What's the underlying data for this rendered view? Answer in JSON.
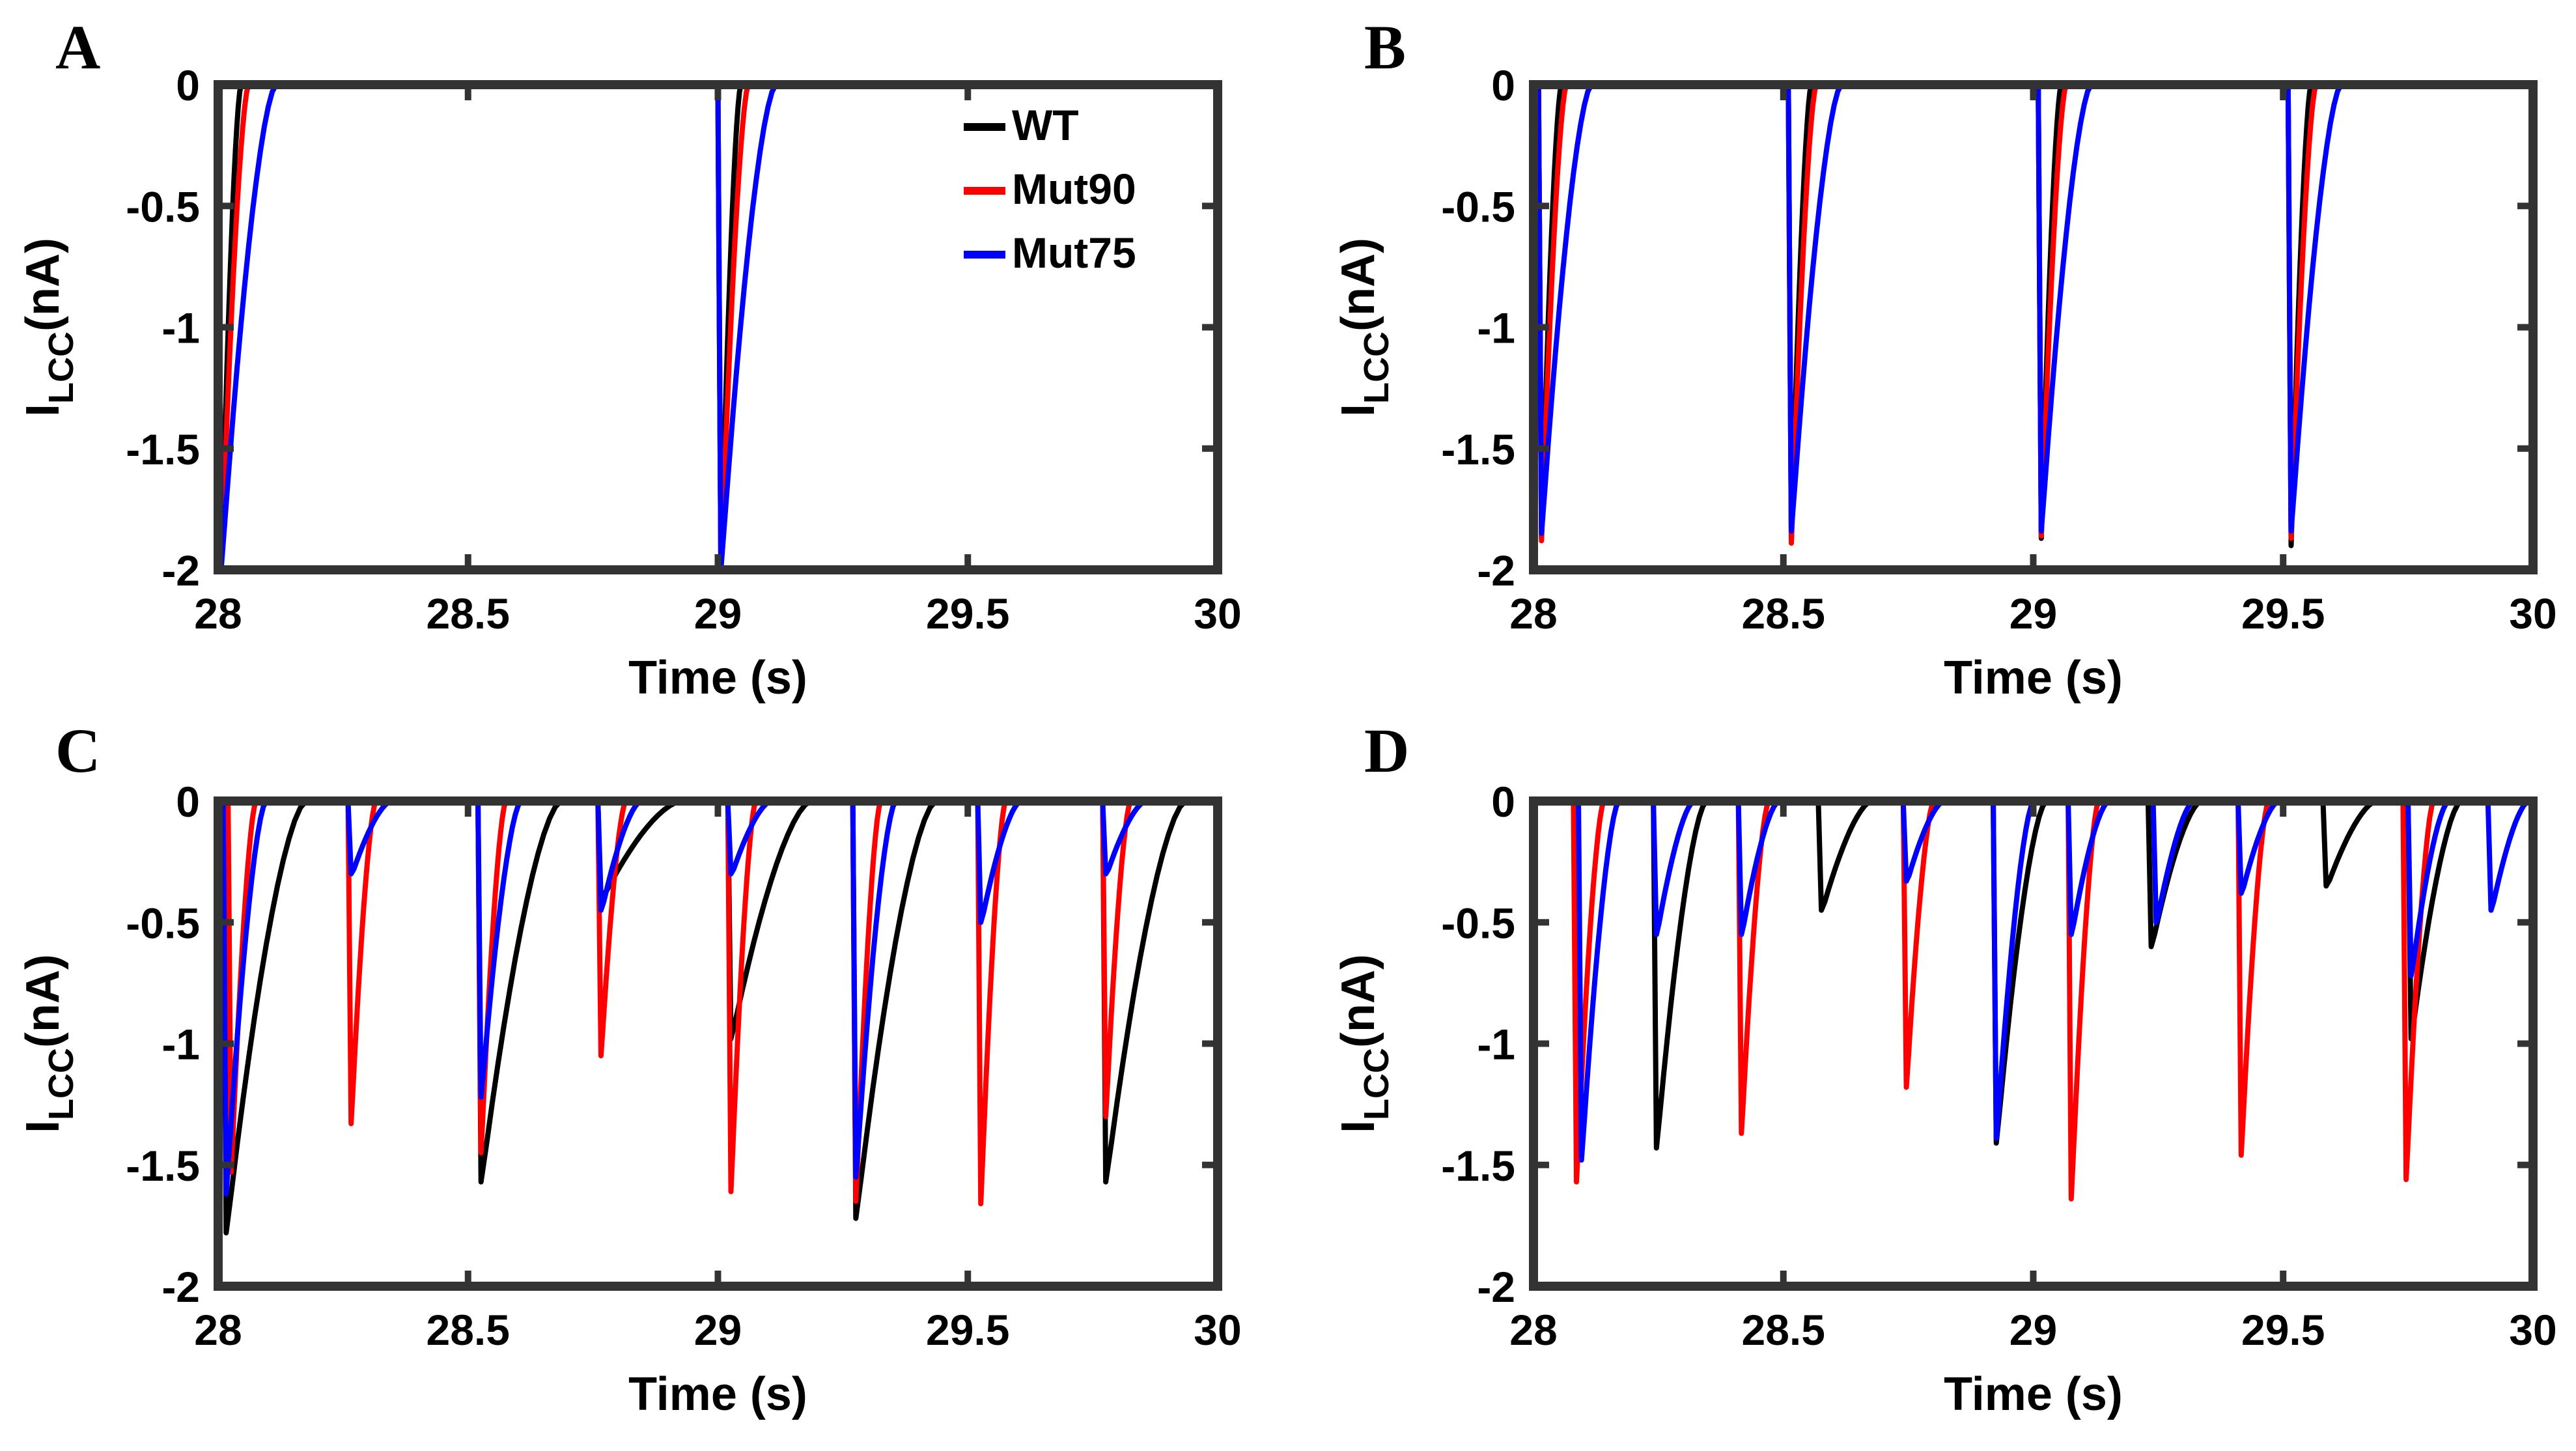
{
  "chart_data": [
    {
      "type": "line",
      "panel": "A",
      "xlabel": "Time (s)",
      "ylabel_main": "I",
      "ylabel_sub": "LCC",
      "ylabel_unit": "(nA)",
      "xlim": [
        28,
        30
      ],
      "ylim": [
        -2,
        0
      ],
      "xticks": [
        28,
        28.5,
        29,
        29.5,
        30
      ],
      "xtick_labels": [
        "28",
        "28.5",
        "29",
        "29.5",
        "30"
      ],
      "yticks": [
        0,
        -0.5,
        -1,
        -1.5,
        -2
      ],
      "ytick_labels": [
        "0",
        "-0.5",
        "-1",
        "-1.5",
        "-2"
      ],
      "legend": {
        "placement": "top-right",
        "entries": [
          "WT",
          "Mut90",
          "Mut75"
        ]
      },
      "series": [
        {
          "name": "WT",
          "color": "#000000",
          "values": [
            [
              28,
              -2.0
            ],
            [
              29,
              -2.0
            ]
          ],
          "width": 0.04
        },
        {
          "name": "Mut90",
          "color": "#ff0000",
          "values": [
            [
              28,
              -2.0
            ],
            [
              29,
              -2.0
            ]
          ],
          "width": 0.055
        },
        {
          "name": "Mut75",
          "color": "#0000ff",
          "values": [
            [
              28,
              -2.0
            ],
            [
              29,
              -2.0
            ]
          ],
          "width": 0.11
        }
      ]
    },
    {
      "type": "line",
      "panel": "B",
      "xlabel": "Time (s)",
      "ylabel_main": "I",
      "ylabel_sub": "LCC",
      "ylabel_unit": "(nA)",
      "xlim": [
        28,
        30
      ],
      "ylim": [
        -2,
        0
      ],
      "xticks": [
        28,
        28.5,
        29,
        29.5,
        30
      ],
      "xtick_labels": [
        "28",
        "28.5",
        "29",
        "29.5",
        "30"
      ],
      "yticks": [
        0,
        -0.5,
        -1,
        -1.5,
        -2
      ],
      "ytick_labels": [
        "0",
        "-0.5",
        "-1",
        "-1.5",
        "-2"
      ],
      "series": [
        {
          "name": "WT",
          "color": "#000000",
          "values": [
            [
              28.01,
              -1.87
            ],
            [
              28.51,
              -1.87
            ],
            [
              29.01,
              -1.87
            ],
            [
              29.51,
              -1.9
            ]
          ],
          "width": 0.04
        },
        {
          "name": "Mut90",
          "color": "#ff0000",
          "values": [
            [
              28.01,
              -1.88
            ],
            [
              28.51,
              -1.89
            ],
            [
              29.01,
              -1.86
            ],
            [
              29.51,
              -1.87
            ]
          ],
          "width": 0.05
        },
        {
          "name": "Mut75",
          "color": "#0000ff",
          "values": [
            [
              28.01,
              -1.85
            ],
            [
              28.51,
              -1.84
            ],
            [
              29.01,
              -1.84
            ],
            [
              29.51,
              -1.84
            ]
          ],
          "width": 0.1
        }
      ]
    },
    {
      "type": "line",
      "panel": "C",
      "xlabel": "Time (s)",
      "ylabel_main": "I",
      "ylabel_sub": "LCC",
      "ylabel_unit": "(nA)",
      "xlim": [
        28,
        30
      ],
      "ylim": [
        -2,
        0
      ],
      "xticks": [
        28,
        28.5,
        29,
        29.5,
        30
      ],
      "xtick_labels": [
        "28",
        "28.5",
        "29",
        "29.5",
        "30"
      ],
      "yticks": [
        0,
        -0.5,
        -1,
        -1.5,
        -2
      ],
      "ytick_labels": [
        "0",
        "-0.5",
        "-1",
        "-1.5",
        "-2"
      ],
      "series": [
        {
          "name": "WT",
          "color": "#000000",
          "values": [
            [
              28.01,
              -1.78
            ],
            [
              28.52,
              -1.57
            ],
            [
              28.76,
              -0.4
            ],
            [
              29.02,
              -0.98
            ],
            [
              29.27,
              -1.72
            ],
            [
              29.77,
              -1.57
            ]
          ],
          "width": 0.16
        },
        {
          "name": "Mut90",
          "color": "#ff0000",
          "values": [
            [
              28.02,
              -1.53
            ],
            [
              28.26,
              -1.33
            ],
            [
              28.52,
              -1.45
            ],
            [
              28.76,
              -1.05
            ],
            [
              29.02,
              -1.61
            ],
            [
              29.27,
              -1.65
            ],
            [
              29.52,
              -1.66
            ],
            [
              29.77,
              -1.3
            ]
          ],
          "width": 0.05
        },
        {
          "name": "Mut75",
          "color": "#0000ff",
          "values": [
            [
              28.01,
              -1.62
            ],
            [
              28.26,
              -0.3
            ],
            [
              28.52,
              -1.22
            ],
            [
              28.76,
              -0.45
            ],
            [
              29.02,
              -0.3
            ],
            [
              29.27,
              -1.55
            ],
            [
              29.52,
              -0.5
            ],
            [
              29.77,
              -0.3
            ]
          ],
          "width": 0.08
        }
      ]
    },
    {
      "type": "line",
      "panel": "D",
      "xlabel": "Time (s)",
      "ylabel_main": "I",
      "ylabel_sub": "LCC",
      "ylabel_unit": "(nA)",
      "xlim": [
        28,
        30
      ],
      "ylim": [
        -2,
        0
      ],
      "xticks": [
        28,
        28.5,
        29,
        29.5,
        30
      ],
      "xtick_labels": [
        "28",
        "28.5",
        "29",
        "29.5",
        "30"
      ],
      "yticks": [
        0,
        -0.5,
        -1,
        -1.5,
        -2
      ],
      "ytick_labels": [
        "0",
        "-0.5",
        "-1",
        "-1.5",
        "-2"
      ],
      "series": [
        {
          "name": "WT",
          "color": "#000000",
          "values": [
            [
              28.24,
              -1.43
            ],
            [
              28.57,
              -0.45
            ],
            [
              28.92,
              -1.41
            ],
            [
              29.23,
              -0.6
            ],
            [
              29.58,
              -0.35
            ],
            [
              29.75,
              -0.98
            ]
          ],
          "width": 0.1
        },
        {
          "name": "Mut90",
          "color": "#ff0000",
          "values": [
            [
              28.08,
              -1.57
            ],
            [
              28.41,
              -1.37
            ],
            [
              28.74,
              -1.18
            ],
            [
              29.07,
              -1.64
            ],
            [
              29.41,
              -1.46
            ],
            [
              29.74,
              -1.56
            ]
          ],
          "width": 0.055
        },
        {
          "name": "Mut75",
          "color": "#0000ff",
          "values": [
            [
              28.09,
              -1.48
            ],
            [
              28.24,
              -0.55
            ],
            [
              28.41,
              -0.55
            ],
            [
              28.74,
              -0.33
            ],
            [
              28.92,
              -1.39
            ],
            [
              29.07,
              -0.55
            ],
            [
              29.24,
              -0.5
            ],
            [
              29.41,
              -0.38
            ],
            [
              29.75,
              -0.72
            ],
            [
              29.91,
              -0.45
            ]
          ],
          "width": 0.075
        }
      ]
    }
  ]
}
